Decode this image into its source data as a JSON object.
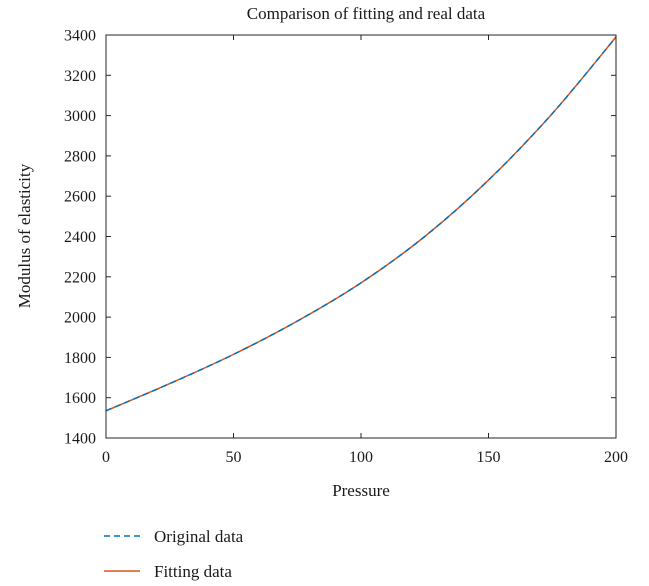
{
  "chart_data": {
    "type": "line",
    "title": "Comparison of fitting and real data",
    "xlabel": "Pressure",
    "ylabel": "Modulus of elasticity",
    "xlim": [
      0,
      200
    ],
    "ylim": [
      1400,
      3400
    ],
    "xticks": [
      0,
      50,
      100,
      150,
      200
    ],
    "yticks": [
      1400,
      1600,
      1800,
      2000,
      2200,
      2400,
      2600,
      2800,
      3000,
      3200,
      3400
    ],
    "grid": false,
    "legend_placement": "below",
    "x": [
      0,
      25,
      50,
      75,
      100,
      125,
      150,
      175,
      200
    ],
    "series": [
      {
        "name": "Original data",
        "style": "dashed",
        "color": "#0072bd",
        "values": [
          1535,
          1670,
          1815,
          1980,
          2170,
          2400,
          2680,
          3010,
          3390
        ]
      },
      {
        "name": "Fitting data",
        "style": "solid",
        "color": "#d95319",
        "values": [
          1535,
          1670,
          1815,
          1980,
          2170,
          2400,
          2680,
          3010,
          3390
        ]
      }
    ]
  }
}
